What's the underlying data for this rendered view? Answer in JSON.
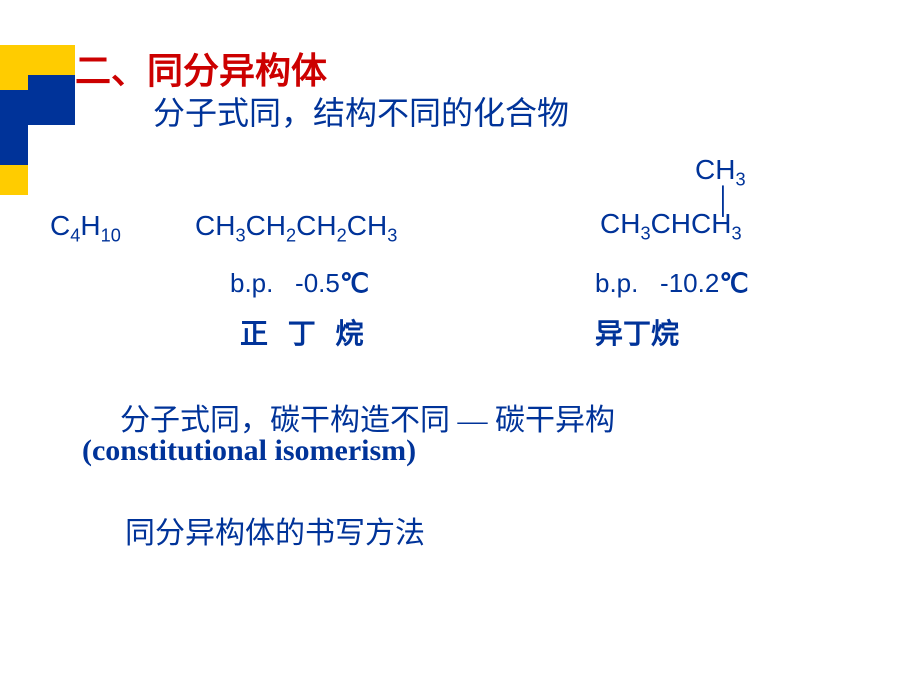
{
  "colors": {
    "accent_red": "#cc0000",
    "primary_blue": "#003399",
    "decor_yellow": "#ffcc00",
    "background": "#ffffff"
  },
  "heading": "二、同分异构体",
  "subheading": "分子式同，结构不同的化合物",
  "molecular_formula": {
    "base": "C",
    "sub1": "4",
    "mid": "H",
    "sub2": "10"
  },
  "structure1": {
    "formula_parts": [
      "CH",
      "3",
      "CH",
      "2",
      "CH",
      "2",
      "CH",
      "3"
    ],
    "bp_label": "b.p.",
    "bp_value": "-0.5",
    "bp_unit": "℃",
    "name": "正 丁 烷"
  },
  "structure2": {
    "top_parts": [
      "CH",
      "3"
    ],
    "bond": "│",
    "main_parts": [
      "CH",
      "3",
      "CHCH",
      "3"
    ],
    "bp_label": "b.p.",
    "bp_value": "-10.2",
    "bp_unit": "℃",
    "name": "异丁烷"
  },
  "definition_cn": "分子式同，碳干构造不同 — 碳干异构",
  "definition_en": "(constitutional isomerism)",
  "writing_method": "同分异构体的书写方法"
}
